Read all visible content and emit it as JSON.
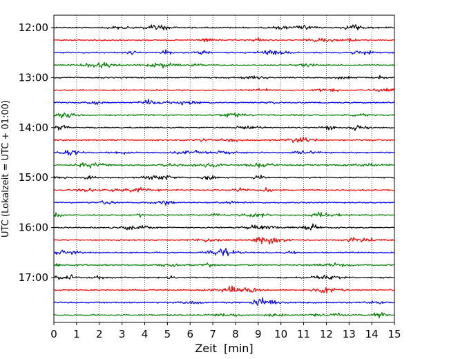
{
  "chart_data": {
    "type": "line",
    "title": "",
    "xlabel": "Zeit  [min]",
    "ylabel": "UTC (Lokalzeit = UTC + 01:00)",
    "xlim": [
      0,
      15
    ],
    "x_ticks": [
      "0",
      "1",
      "2",
      "3",
      "4",
      "5",
      "6",
      "7",
      "8",
      "9",
      "10",
      "11",
      "12",
      "13",
      "14",
      "15"
    ],
    "y_ticks": [
      "12:00",
      "13:00",
      "14:00",
      "15:00",
      "16:00",
      "17:00"
    ],
    "grid": "vertical dotted at each minute",
    "trace_interval_minutes": 15,
    "trace_start": "12:00",
    "trace_count": 24,
    "trace_color_cycle": [
      "#000000",
      "#ff0000",
      "#0000ff",
      "#007f00"
    ]
  }
}
